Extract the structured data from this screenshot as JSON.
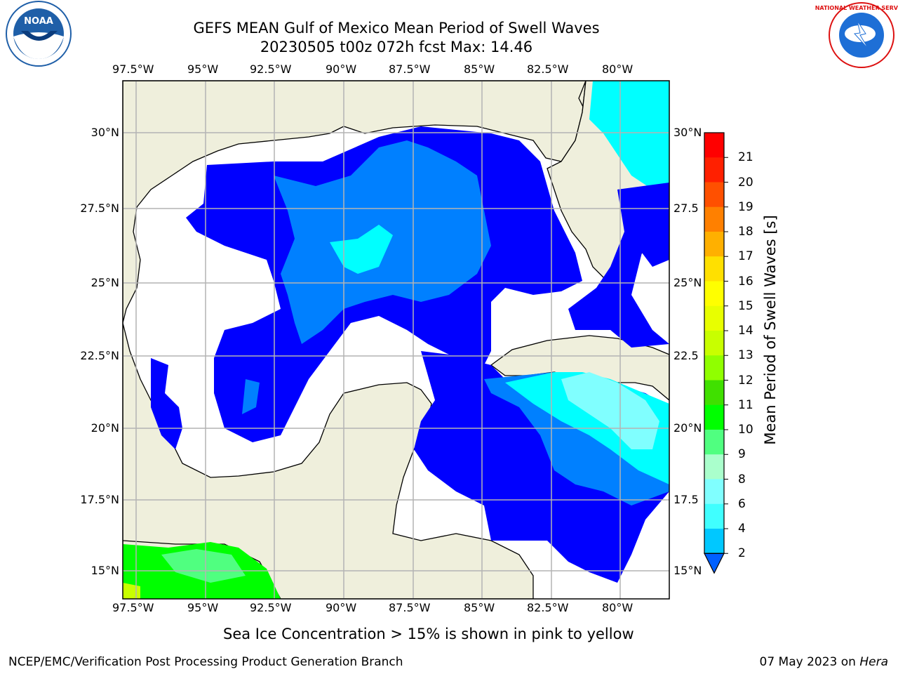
{
  "title_line1": "GEFS MEAN Gulf of Mexico Mean Period of Swell Waves",
  "title_line2": "20230505 t00z 072h fcst   Max: 14.46",
  "map": {
    "lon_labels": [
      "97.5°W",
      "95°W",
      "92.5°W",
      "90°W",
      "87.5°W",
      "85°W",
      "82.5°W",
      "80°W"
    ],
    "lat_labels_left": [
      "30°N",
      "27.5°N",
      "25°N",
      "22.5°N",
      "20°N",
      "17.5°N",
      "15°N"
    ],
    "lat_labels_right": [
      "30°N",
      "27.5",
      "25°N",
      "22.5",
      "20°N",
      "17.5",
      "15°N"
    ],
    "land_color": "#efefdc",
    "grid_color": "#b4b4b4",
    "regions": [
      {
        "name": "deep-gulf-low-period",
        "color": "#0000ff"
      },
      {
        "name": "mid-gulf-swell",
        "color": "#0080ff"
      },
      {
        "name": "atlantic-swell",
        "color": "#00ffff"
      },
      {
        "name": "caribbean-swell",
        "color": "#80ffff"
      },
      {
        "name": "pacific-swell",
        "color": "#00ff00"
      }
    ]
  },
  "colorbar": {
    "title": "Mean Period of Swell Waves [s]",
    "ticks": [
      "2",
      "4",
      "6",
      "8",
      "9",
      "10",
      "11",
      "12",
      "13",
      "14",
      "15",
      "16",
      "17",
      "18",
      "19",
      "20",
      "21"
    ],
    "colors": [
      "#0060ff",
      "#00c8ff",
      "#40ffff",
      "#80ffff",
      "#aaffcc",
      "#50ff80",
      "#00ff00",
      "#40e000",
      "#90ff00",
      "#c8ff00",
      "#e8ff00",
      "#ffff00",
      "#ffe000",
      "#ffb000",
      "#ff8000",
      "#ff5000",
      "#ff2000",
      "#ff0000"
    ]
  },
  "ice_note": "Sea Ice Concentration > 15% is shown in pink to yellow",
  "footer": {
    "left": "NCEP/EMC/Verification Post Processing Product Generation Branch",
    "date": "07 May 2023 on ",
    "host": "Hera"
  },
  "logos": {
    "noaa_text": "NOAA",
    "nws_text": "NATIONAL WEATHER SERVICE"
  }
}
